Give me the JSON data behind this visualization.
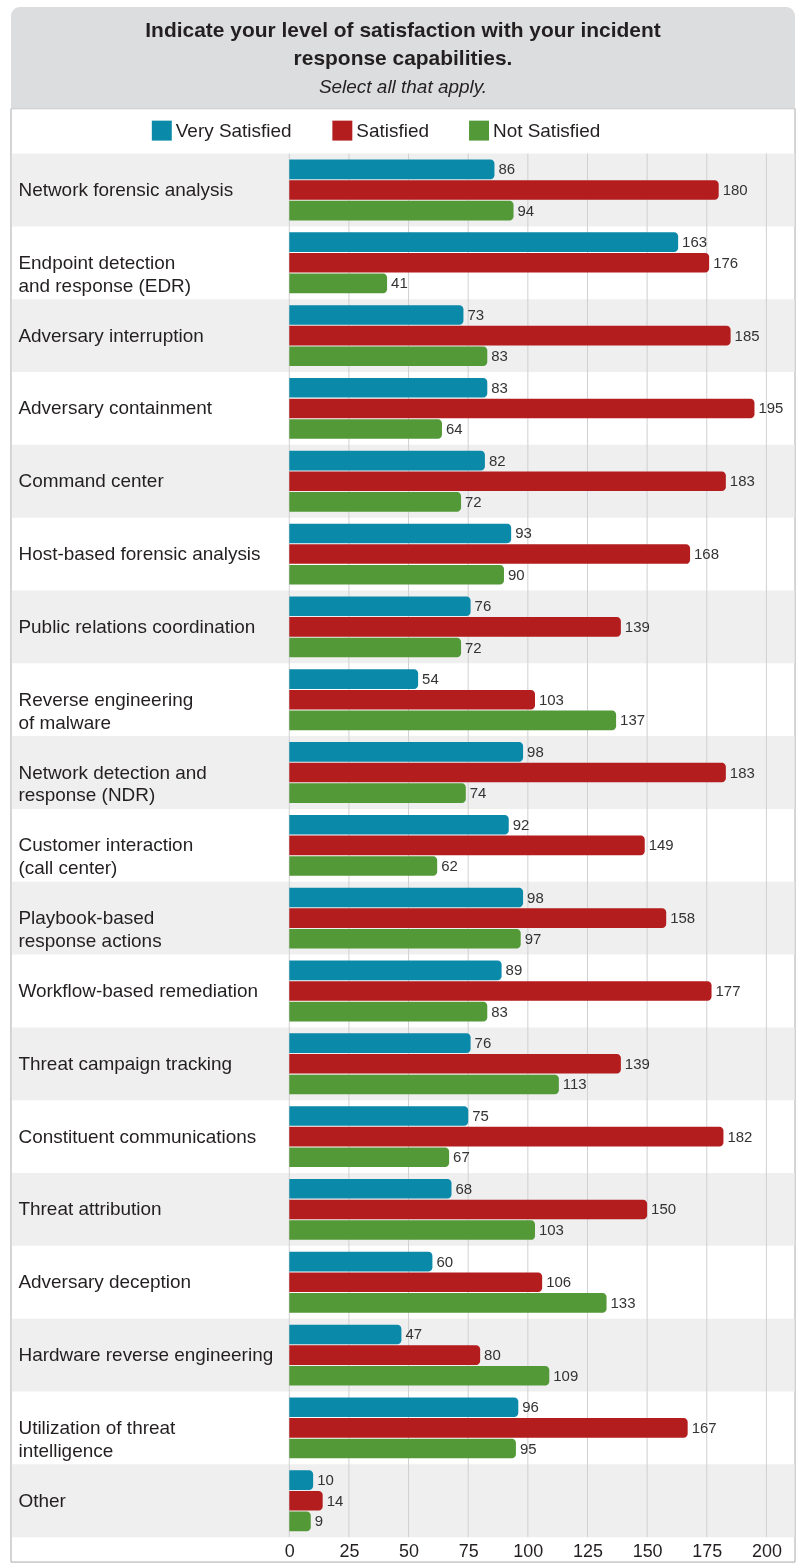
{
  "chart_data": {
    "type": "bar",
    "orientation": "horizontal",
    "title": "Indicate your level of satisfaction with your incident response capabilities.",
    "subtitle": "Select all that apply.",
    "categories": [
      "Network forensic analysis",
      "Endpoint detection\nand response (EDR)",
      "Adversary interruption",
      "Adversary containment",
      "Command center",
      "Host-based forensic analysis",
      "Public relations coordination",
      "Reverse engineering\nof malware",
      "Network detection and\nresponse (NDR)",
      "Customer interaction\n(call center)",
      "Playbook-based\nresponse actions",
      "Workflow-based remediation",
      "Threat campaign tracking",
      "Constituent communications",
      "Threat attribution",
      "Adversary deception",
      "Hardware reverse engineering",
      "Utilization of threat\nintelligence",
      "Other"
    ],
    "series": [
      {
        "name": "Very Satisfied",
        "color": "#0a89a9",
        "values": [
          86,
          163,
          73,
          83,
          82,
          93,
          76,
          54,
          98,
          92,
          98,
          89,
          76,
          75,
          68,
          60,
          47,
          96,
          10
        ]
      },
      {
        "name": "Satisfied",
        "color": "#b41d1e",
        "values": [
          180,
          176,
          185,
          195,
          183,
          168,
          139,
          103,
          183,
          149,
          158,
          177,
          139,
          182,
          150,
          106,
          80,
          167,
          14
        ]
      },
      {
        "name": "Not Satisfied",
        "color": "#539937",
        "values": [
          94,
          41,
          83,
          64,
          72,
          90,
          72,
          137,
          74,
          62,
          97,
          83,
          113,
          67,
          103,
          133,
          109,
          95,
          9
        ]
      }
    ],
    "xlim": [
      0,
      212
    ],
    "xticks": [
      0,
      25,
      50,
      75,
      100,
      125,
      150,
      175,
      200
    ],
    "bands": [
      {
        "axis": "y",
        "from": "Network forensic analysis",
        "to": "Network forensic analysis",
        "color": "#efefef"
      },
      {
        "axis": "y",
        "from": "Adversary interruption",
        "to": "Adversary interruption",
        "color": "#efefef"
      },
      {
        "axis": "y",
        "from": "Command center",
        "to": "Command center",
        "color": "#efefef"
      },
      {
        "axis": "y",
        "from": "Public relations coordination",
        "to": "Public relations coordination",
        "color": "#efefef"
      },
      {
        "axis": "y",
        "from": "Network detection and\nresponse (NDR)",
        "to": "Network detection and\nresponse (NDR)",
        "color": "#efefef"
      },
      {
        "axis": "y",
        "from": "Playbook-based\nresponse actions",
        "to": "Playbook-based\nresponse actions",
        "color": "#efefef"
      },
      {
        "axis": "y",
        "from": "Threat campaign tracking",
        "to": "Threat campaign tracking",
        "color": "#efefef"
      },
      {
        "axis": "y",
        "from": "Threat attribution",
        "to": "Threat attribution",
        "color": "#efefef"
      },
      {
        "axis": "y",
        "from": "Hardware reverse engineering",
        "to": "Hardware reverse engineering",
        "color": "#efefef"
      },
      {
        "axis": "y",
        "from": "Other",
        "to": "Other",
        "color": "#efefef"
      }
    ],
    "grid": "x",
    "legend": "top",
    "data_labels": true
  }
}
